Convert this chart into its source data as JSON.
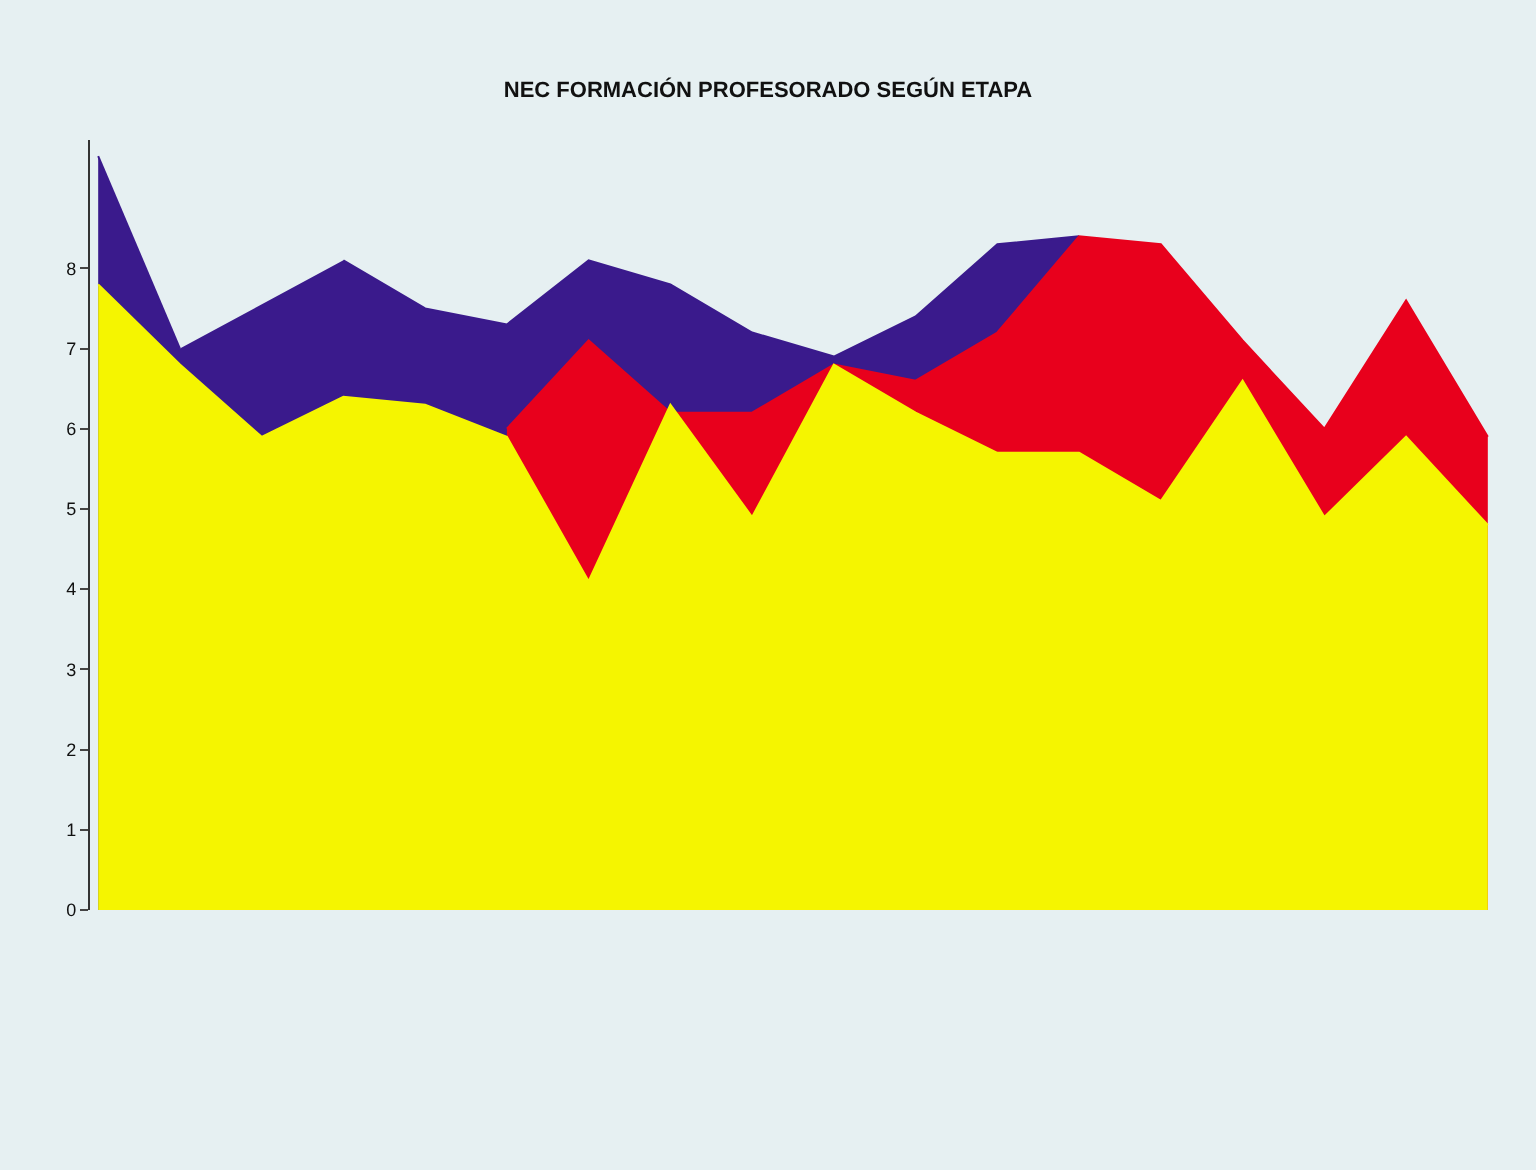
{
  "chart_data": {
    "type": "area",
    "title": "NEC FORMACIÓN PROFESORADO SEGÚN ETAPA",
    "categories": [
      null,
      null,
      null,
      null,
      null,
      null,
      null,
      null,
      null,
      null,
      null,
      null,
      null,
      null,
      null,
      null,
      null,
      null
    ],
    "series": [
      {
        "color": "#3a1a8c",
        "values": [
          9.4,
          7.0,
          null,
          8.1,
          7.5,
          7.3,
          8.1,
          7.8,
          7.2,
          6.9,
          7.4,
          8.3,
          8.4,
          null,
          null,
          null,
          null,
          null
        ]
      },
      {
        "color": "#e8001c",
        "values": [
          null,
          null,
          null,
          null,
          null,
          6.0,
          7.1,
          6.2,
          6.2,
          6.8,
          6.6,
          7.2,
          8.4,
          8.3,
          7.1,
          6.0,
          7.6,
          5.9
        ]
      },
      {
        "color": "#f5f500",
        "values": [
          7.8,
          6.8,
          5.9,
          6.4,
          6.3,
          5.9,
          4.1,
          6.3,
          4.9,
          6.8,
          6.2,
          5.7,
          5.7,
          5.1,
          6.6,
          4.9,
          5.9,
          4.8
        ]
      }
    ],
    "ylim": [
      0,
      9.6
    ],
    "yticks": [
      0,
      1,
      2,
      3,
      4,
      5,
      6,
      7,
      8
    ],
    "grid": false
  }
}
